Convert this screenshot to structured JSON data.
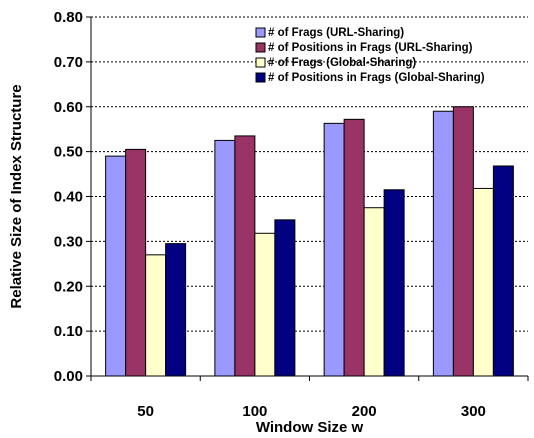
{
  "chart_data": {
    "type": "bar",
    "title": "",
    "xlabel": "Window Size w",
    "ylabel": "Relative Size of Index Structure",
    "categories": [
      "50",
      "100",
      "200",
      "300"
    ],
    "ylim": [
      0,
      0.8
    ],
    "yticks": [
      "0.00",
      "0.10",
      "0.20",
      "0.30",
      "0.40",
      "0.50",
      "0.60",
      "0.70",
      "0.80"
    ],
    "grid": "horizontal dashed",
    "legend_position": "top-right",
    "series": [
      {
        "name": "# of Frags (URL-Sharing)",
        "values": [
          0.49,
          0.525,
          0.563,
          0.59
        ],
        "color": "#9999ff"
      },
      {
        "name": "# of Positions in Frags (URL-Sharing)",
        "values": [
          0.505,
          0.535,
          0.572,
          0.6
        ],
        "color": "#993366"
      },
      {
        "name": "# of Frags (Global-Sharing)",
        "values": [
          0.27,
          0.318,
          0.375,
          0.418
        ],
        "color": "#ffffcc"
      },
      {
        "name": "# of Positions in Frags (Global-Sharing)",
        "values": [
          0.295,
          0.348,
          0.415,
          0.468
        ],
        "color": "#000080"
      }
    ]
  }
}
